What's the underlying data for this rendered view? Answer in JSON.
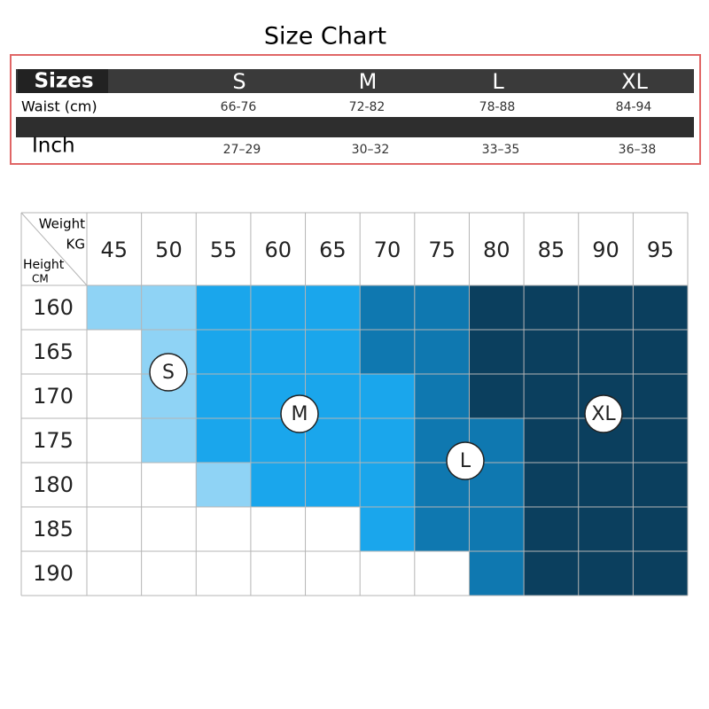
{
  "title": "Size Chart",
  "size_table": {
    "header_label": "Sizes",
    "sizes": [
      "S",
      "M",
      "L",
      "XL"
    ],
    "rows": [
      {
        "label": "Waist (cm)",
        "values": [
          "66-76",
          "72-82",
          "78-88",
          "84-94"
        ]
      },
      {
        "label": "Inch",
        "values": [
          "27–29",
          "30–32",
          "33–35",
          "36–38"
        ]
      }
    ]
  },
  "grid": {
    "weight_label": "Weight",
    "weight_unit": "KG",
    "height_label": "Height",
    "height_unit": "CM",
    "weights": [
      "45",
      "50",
      "55",
      "60",
      "65",
      "70",
      "75",
      "80",
      "85",
      "90",
      "95"
    ],
    "heights": [
      "160",
      "165",
      "170",
      "175",
      "180",
      "185",
      "190"
    ],
    "cells": [
      [
        "#8fd3f5",
        "#8fd3f5",
        "#1aa6ec",
        "#1aa6ec",
        "#1aa6ec",
        "#0f78b0",
        "#0f78b0",
        "#0b3f5e",
        "#0b3f5e",
        "#0b3f5e",
        "#0b3f5e"
      ],
      [
        "#ffffff",
        "#8fd3f5",
        "#1aa6ec",
        "#1aa6ec",
        "#1aa6ec",
        "#0f78b0",
        "#0f78b0",
        "#0b3f5e",
        "#0b3f5e",
        "#0b3f5e",
        "#0b3f5e"
      ],
      [
        "#ffffff",
        "#8fd3f5",
        "#1aa6ec",
        "#1aa6ec",
        "#1aa6ec",
        "#1aa6ec",
        "#0f78b0",
        "#0b3f5e",
        "#0b3f5e",
        "#0b3f5e",
        "#0b3f5e"
      ],
      [
        "#ffffff",
        "#8fd3f5",
        "#1aa6ec",
        "#1aa6ec",
        "#1aa6ec",
        "#1aa6ec",
        "#0f78b0",
        "#0f78b0",
        "#0b3f5e",
        "#0b3f5e",
        "#0b3f5e"
      ],
      [
        "#ffffff",
        "#ffffff",
        "#8fd3f5",
        "#1aa6ec",
        "#1aa6ec",
        "#1aa6ec",
        "#0f78b0",
        "#0f78b0",
        "#0b3f5e",
        "#0b3f5e",
        "#0b3f5e"
      ],
      [
        "#ffffff",
        "#ffffff",
        "#ffffff",
        "#ffffff",
        "#ffffff",
        "#1aa6ec",
        "#0f78b0",
        "#0f78b0",
        "#0b3f5e",
        "#0b3f5e",
        "#0b3f5e"
      ],
      [
        "#ffffff",
        "#ffffff",
        "#ffffff",
        "#ffffff",
        "#ffffff",
        "#ffffff",
        "#ffffff",
        "#0f78b0",
        "#0b3f5e",
        "#0b3f5e",
        "#0b3f5e"
      ]
    ],
    "zone_labels": [
      "S",
      "M",
      "L",
      "XL"
    ]
  }
}
